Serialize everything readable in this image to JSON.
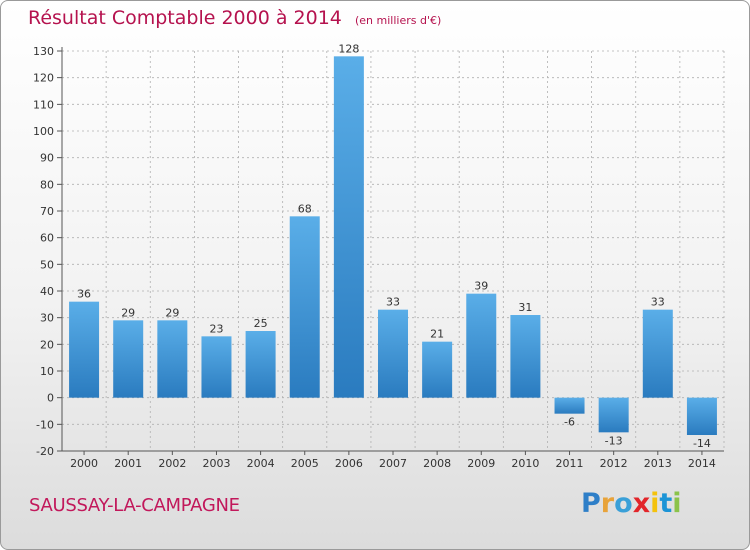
{
  "header": {
    "title": "Résultat Comptable 2000 à 2014",
    "unit": "(en milliers d'€)"
  },
  "footer": {
    "commune": "SAUSSAY-LA-CAMPAGNE",
    "logo_text": "Proxiti",
    "logo_letters": [
      "P",
      "r",
      "o",
      "x",
      "i",
      "t",
      "i"
    ],
    "logo_colors": [
      "#2e7fc8",
      "#e8a33a",
      "#3aa0d8",
      "#e2252a",
      "#f4c20d",
      "#1c94d6",
      "#8bc34a"
    ]
  },
  "chart_data": {
    "type": "bar",
    "title": "Résultat Comptable 2000 à 2014",
    "unit": "(en milliers d'€)",
    "categories": [
      "2000",
      "2001",
      "2002",
      "2003",
      "2004",
      "2005",
      "2006",
      "2007",
      "2008",
      "2009",
      "2010",
      "2011",
      "2012",
      "2013",
      "2014"
    ],
    "values": [
      36,
      29,
      29,
      23,
      25,
      68,
      128,
      33,
      21,
      39,
      31,
      -6,
      -13,
      33,
      -14
    ],
    "value_labels": [
      "36",
      "29",
      "29",
      "23",
      "25",
      "68",
      "128",
      "33",
      "21",
      "39",
      "31",
      "-6",
      "-13",
      "33",
      "-14"
    ],
    "ylim": [
      -20,
      130
    ],
    "yticks": [
      -20,
      -10,
      0,
      10,
      20,
      30,
      40,
      50,
      60,
      70,
      80,
      90,
      100,
      110,
      120,
      130
    ],
    "grid": true,
    "bar_color_light": "#5aaee8",
    "bar_color_dark": "#2a7bbf",
    "grid_color": "#b0b0b0",
    "text_color": "#333333"
  }
}
